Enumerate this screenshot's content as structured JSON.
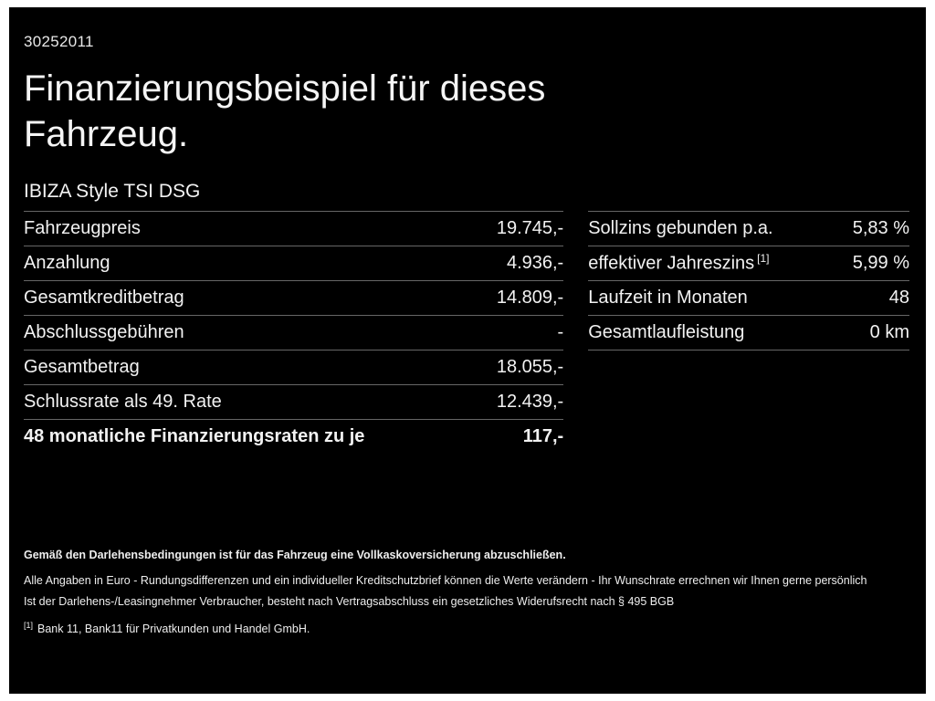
{
  "doc": {
    "id_number": "30252011",
    "title": "Finanzierungsbeispiel für dieses Fahrzeug.",
    "model": "IBIZA Style TSI DSG"
  },
  "tables": {
    "left": {
      "rows": [
        {
          "label": "Fahrzeugpreis",
          "value": "19.745,-"
        },
        {
          "label": "Anzahlung",
          "value": "4.936,-"
        },
        {
          "label": "Gesamtkreditbetrag",
          "value": "14.809,-"
        },
        {
          "label": "Abschlussgebühren",
          "value": "-"
        },
        {
          "label": "Gesamtbetrag",
          "value": "18.055,-"
        },
        {
          "label": "Schlussrate als 49. Rate",
          "value": "12.439,-"
        },
        {
          "label": "48 monatliche Finanzierungsraten zu je",
          "value": "117,-"
        }
      ]
    },
    "right": {
      "rows": [
        {
          "label": "Sollzins gebunden p.a.",
          "value": "5,83 %"
        },
        {
          "label": "effektiver Jahreszins",
          "sup": "[1]",
          "value": "5,99 %"
        },
        {
          "label": "Laufzeit in Monaten",
          "value": "48"
        },
        {
          "label": "Gesamtlaufleistung",
          "value": "0 km"
        }
      ]
    }
  },
  "footer": {
    "line1": "Gemäß den Darlehensbedingungen ist für das Fahrzeug eine Vollkaskoversicherung abzuschließen.",
    "line2": "Alle Angaben in Euro - Rundungsdifferenzen und ein individueller Kreditschutzbrief können die Werte verändern - Ihr Wunschrate errechnen wir Ihnen gerne persönlich",
    "line3": "Ist der Darlehens-/Leasingnehmer Verbraucher, besteht nach Vertragsabschluss ein gesetzliches Widerufsrecht nach § 495 BGB",
    "footnote_marker": "[1]",
    "footnote_text": "Bank 11, Bank11 für Privatkunden und Handel GmbH."
  },
  "colors": {
    "background": "#000000",
    "text": "#f2f2f2",
    "divider": "#666666"
  }
}
